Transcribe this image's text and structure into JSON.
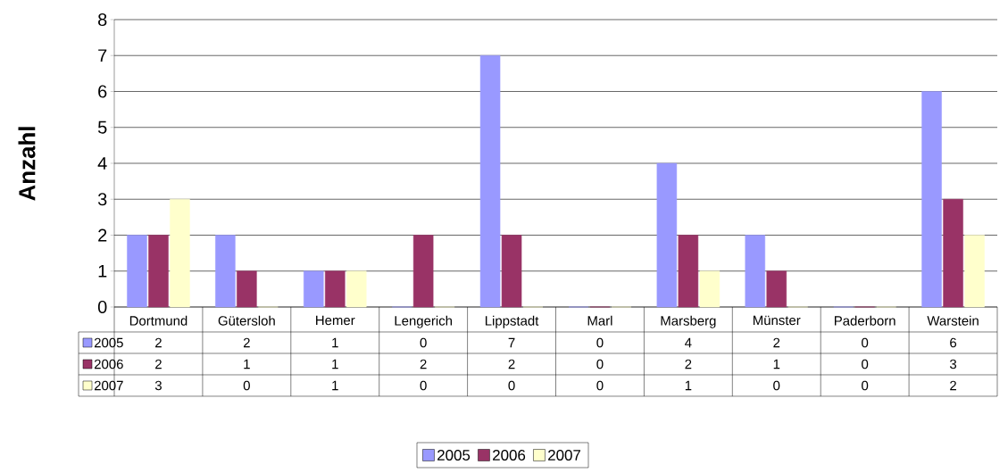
{
  "chart_data": {
    "type": "bar",
    "ylabel": "Anzahl",
    "categories": [
      "Dortmund",
      "Gütersloh",
      "Hemer",
      "Lengerich",
      "Lippstadt",
      "Marl",
      "Marsberg",
      "Münster",
      "Paderborn",
      "Warstein"
    ],
    "series": [
      {
        "name": "2005",
        "color": "#9999ff",
        "values": [
          2,
          2,
          1,
          0,
          7,
          0,
          4,
          2,
          0,
          6
        ]
      },
      {
        "name": "2006",
        "color": "#993366",
        "values": [
          2,
          1,
          1,
          2,
          2,
          0,
          2,
          1,
          0,
          3
        ]
      },
      {
        "name": "2007",
        "color": "#ffffcc",
        "values": [
          3,
          0,
          1,
          0,
          0,
          0,
          1,
          0,
          0,
          2
        ]
      }
    ],
    "ylim": [
      0,
      8
    ],
    "yticks": [
      0,
      1,
      2,
      3,
      4,
      5,
      6,
      7,
      8
    ],
    "grid": "y",
    "legend": "bottom",
    "data_labels": true
  }
}
